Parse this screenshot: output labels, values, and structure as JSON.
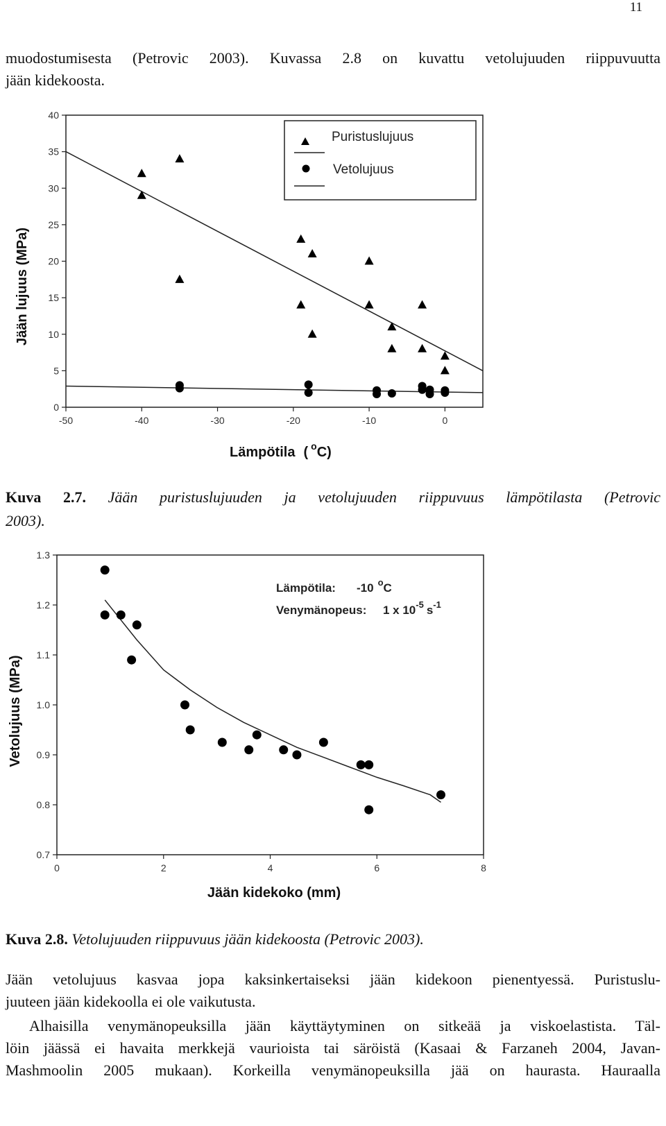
{
  "page_number": "11",
  "intro_lines": [
    "muodostumisesta (Petrovic 2003). Kuvassa 2.8 on kuvattu vetolujuuden riippuvuutta",
    "jään kidekoosta."
  ],
  "figure1": {
    "caption_label": "Kuva 2.7.",
    "caption_text": " Jään puristuslujuuden ja vetolujuuden riippuvuus lämpötilasta (Petrovic",
    "caption_text2": "2003).",
    "chart_data": {
      "type": "scatter",
      "xlabel": "Lämpötila",
      "xlabel_unit": "( °C)",
      "xlabel_unit_open": "(",
      "xlabel_unit_o": "o",
      "xlabel_unit_c": "C)",
      "ylabel": "Jään lujuus (MPa)",
      "xlim": [
        -50,
        5
      ],
      "ylim": [
        0,
        40
      ],
      "x_ticks": [
        "-50",
        "-40",
        "-30",
        "-20",
        "-10",
        "0"
      ],
      "x_tick_values": [
        -50,
        -40,
        -30,
        -20,
        -10,
        0
      ],
      "y_ticks": [
        "0",
        "5",
        "10",
        "15",
        "20",
        "25",
        "30",
        "35",
        "40"
      ],
      "y_tick_values": [
        0,
        5,
        10,
        15,
        20,
        25,
        30,
        35,
        40
      ],
      "legend_position": "top-right",
      "series": [
        {
          "name": "Puristuslujuus",
          "marker": "triangle",
          "points": [
            [
              -40,
              32
            ],
            [
              -40,
              29
            ],
            [
              -35,
              34
            ],
            [
              -35,
              17.5
            ],
            [
              -19,
              23
            ],
            [
              -19,
              14
            ],
            [
              -17.5,
              21
            ],
            [
              -17.5,
              10
            ],
            [
              -10,
              20
            ],
            [
              -10,
              14
            ],
            [
              -7,
              11
            ],
            [
              -7,
              8
            ],
            [
              -3,
              14
            ],
            [
              -3,
              8
            ],
            [
              0,
              7
            ],
            [
              0,
              5
            ]
          ],
          "trendline": [
            [
              -50,
              35
            ],
            [
              5,
              5
            ]
          ]
        },
        {
          "name": "Vetolujuus",
          "marker": "circle",
          "points": [
            [
              -35,
              3
            ],
            [
              -35,
              2.6
            ],
            [
              -18,
              3.1
            ],
            [
              -18,
              2
            ],
            [
              -9,
              2.3
            ],
            [
              -9,
              1.8
            ],
            [
              -7,
              1.9
            ],
            [
              -3,
              2.9
            ],
            [
              -3,
              2.4
            ],
            [
              -2,
              2.4
            ],
            [
              -2,
              1.8
            ],
            [
              0,
              2.3
            ],
            [
              0,
              2
            ]
          ],
          "trendline": [
            [
              -50,
              2.9
            ],
            [
              5,
              2
            ]
          ]
        }
      ]
    }
  },
  "figure2": {
    "caption_label": "Kuva 2.8.",
    "caption_text": " Vetolujuuden riippuvuus jään kidekoosta (Petrovic 2003).",
    "chart_data": {
      "type": "scatter",
      "xlabel": "Jään kidekoko (mm)",
      "ylabel": "Vetolujuus (MPa)",
      "xlim": [
        0,
        8
      ],
      "ylim": [
        0.7,
        1.3
      ],
      "x_ticks": [
        "0",
        "2",
        "4",
        "6",
        "8"
      ],
      "x_tick_values": [
        0,
        2,
        4,
        6,
        8
      ],
      "y_ticks": [
        "0.7",
        "0.8",
        "0.9",
        "1.0",
        "1.1",
        "1.2",
        "1.3"
      ],
      "y_tick_values": [
        0.7,
        0.8,
        0.9,
        1.0,
        1.1,
        1.2,
        1.3
      ],
      "annotations": {
        "temp_label": "Lämpötila:",
        "temp_value": "-10",
        "temp_unit_o": "o",
        "temp_unit_c": "C",
        "rate_label": "Venymänopeus:",
        "rate_value": "1 x 10",
        "rate_exp": "-5",
        "rate_unit": "s",
        "rate_unit_exp": "-1"
      },
      "series": [
        {
          "marker": "circle",
          "points": [
            [
              0.9,
              1.27
            ],
            [
              0.9,
              1.18
            ],
            [
              1.2,
              1.18
            ],
            [
              1.5,
              1.16
            ],
            [
              1.4,
              1.09
            ],
            [
              2.4,
              1.0
            ],
            [
              2.5,
              0.95
            ],
            [
              3.1,
              0.925
            ],
            [
              3.6,
              0.91
            ],
            [
              3.75,
              0.94
            ],
            [
              4.25,
              0.91
            ],
            [
              4.5,
              0.9
            ],
            [
              5.0,
              0.925
            ],
            [
              5.7,
              0.88
            ],
            [
              5.85,
              0.88
            ],
            [
              5.85,
              0.79
            ],
            [
              7.2,
              0.82
            ]
          ],
          "trendline": [
            [
              0.9,
              1.21
            ],
            [
              1.5,
              1.13
            ],
            [
              2.0,
              1.07
            ],
            [
              2.5,
              1.03
            ],
            [
              3.0,
              0.995
            ],
            [
              3.5,
              0.965
            ],
            [
              4.0,
              0.94
            ],
            [
              4.5,
              0.915
            ],
            [
              5.0,
              0.895
            ],
            [
              5.5,
              0.875
            ],
            [
              6.0,
              0.855
            ],
            [
              6.5,
              0.838
            ],
            [
              7.0,
              0.82
            ],
            [
              7.2,
              0.805
            ]
          ]
        }
      ]
    }
  },
  "body_lines": [
    "Jään vetolujuus kasvaa jopa kaksinkertaiseksi jään kidekoon pienentyessä. Puristuslu-",
    "juuteen jään kidekoolla ei ole vaikutusta.",
    "Alhaisilla venymänopeuksilla jään käyttäytyminen on sitkeää ja viskoelastista. Täl-",
    "löin jäässä ei havaita merkkejä vaurioista tai säröistä (Kasaai & Farzaneh 2004, Javan-",
    "Mashmoolin 2005 mukaan). Korkeilla venymänopeuksilla jää on haurasta. Hauraalla"
  ]
}
